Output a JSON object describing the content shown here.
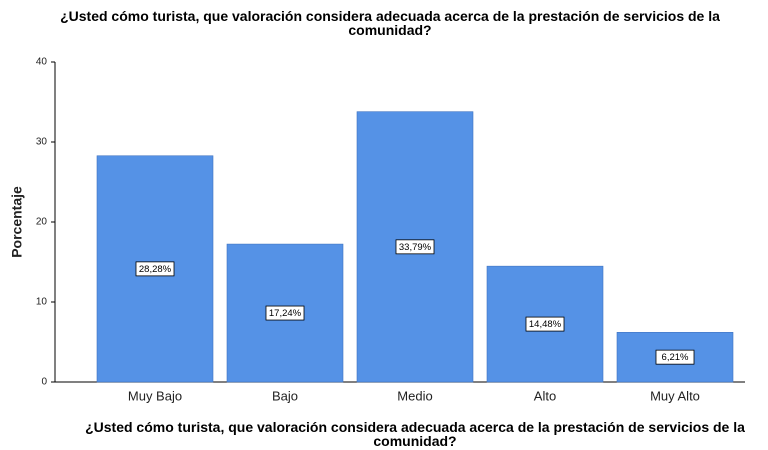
{
  "chart_data": {
    "type": "bar",
    "title": "¿Usted cómo turista, que valoración considera adecuada acerca de la prestación de servicios de la comunidad?",
    "xlabel": "¿Usted cómo turista, que valoración considera adecuada acerca de la prestación de servicios de la comunidad?",
    "ylabel": "Porcentaje",
    "categories": [
      "Muy Bajo",
      "Bajo",
      "Medio",
      "Alto",
      "Muy Alto"
    ],
    "values": [
      28.28,
      17.24,
      33.79,
      14.48,
      6.21
    ],
    "value_labels": [
      "28,28%",
      "17,24%",
      "33,79%",
      "14,48%",
      "6,21%"
    ],
    "color": "#5592e6",
    "ylim": [
      0,
      40
    ],
    "yticks": [
      0,
      10,
      20,
      30,
      40
    ],
    "grid": false
  }
}
